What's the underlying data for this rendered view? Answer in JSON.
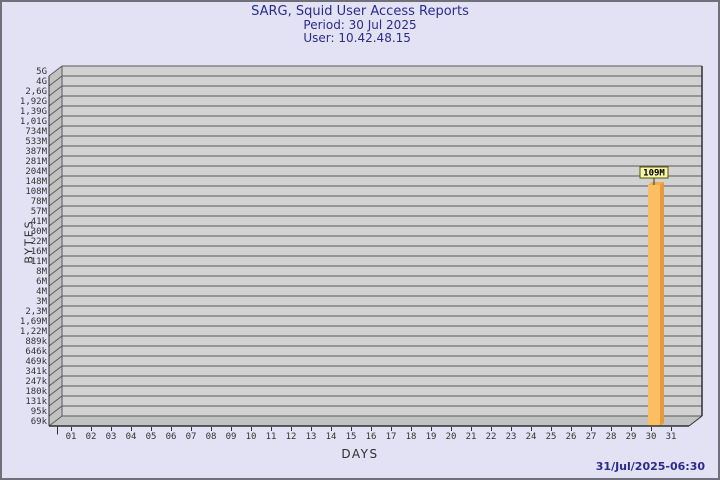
{
  "chart_data": {
    "type": "bar",
    "title": "SARG, Squid User Access Reports",
    "subtitle_period": "Period: 30 Jul 2025",
    "subtitle_user": "User: 10.42.48.15",
    "xlabel": "DAYS",
    "ylabel": "BYTES",
    "scale": "logarithmic-byte-scale",
    "legend": "none",
    "grid": "horizontal-lines-on",
    "categories": [
      "01",
      "02",
      "03",
      "04",
      "05",
      "06",
      "07",
      "08",
      "09",
      "10",
      "11",
      "12",
      "13",
      "14",
      "15",
      "16",
      "17",
      "18",
      "19",
      "20",
      "21",
      "22",
      "23",
      "24",
      "25",
      "26",
      "27",
      "28",
      "29",
      "30",
      "31"
    ],
    "values": [
      0,
      0,
      0,
      0,
      0,
      0,
      0,
      0,
      0,
      0,
      0,
      0,
      0,
      0,
      0,
      0,
      0,
      0,
      0,
      0,
      0,
      0,
      0,
      0,
      0,
      0,
      0,
      0,
      0,
      109000000,
      0
    ],
    "value_labels": {
      "30": "109M"
    },
    "y_ticks": [
      "5G",
      "4G",
      "2,6G",
      "1,92G",
      "1,39G",
      "1,01G",
      "734M",
      "533M",
      "387M",
      "281M",
      "204M",
      "148M",
      "108M",
      "78M",
      "57M",
      "41M",
      "30M",
      "22M",
      "16M",
      "11M",
      "8M",
      "6M",
      "4M",
      "3M",
      "2,3M",
      "1,69M",
      "1,22M",
      "889k",
      "646k",
      "469k",
      "341k",
      "247k",
      "180k",
      "131k",
      "95k",
      "69k"
    ],
    "y_range_labels": [
      "69k",
      "5G"
    ],
    "footer_timestamp": "31/Jul/2025-06:30",
    "colors": {
      "page_bg": "#e2e2f4",
      "frame_border": "#70707a",
      "title_text": "#2b2b8f",
      "plot_bg": "#d2d2d2",
      "wall_bg": "#c2c2c2",
      "grid": "#5a5a5a",
      "edge": "#303030",
      "tick_text": "#333333",
      "bar_front": "#fcbe62",
      "bar_side": "#e59a3c",
      "bar_top": "#f3ab4e",
      "label_box_bg": "#f7f7a9",
      "label_box_border": "#555500"
    }
  }
}
